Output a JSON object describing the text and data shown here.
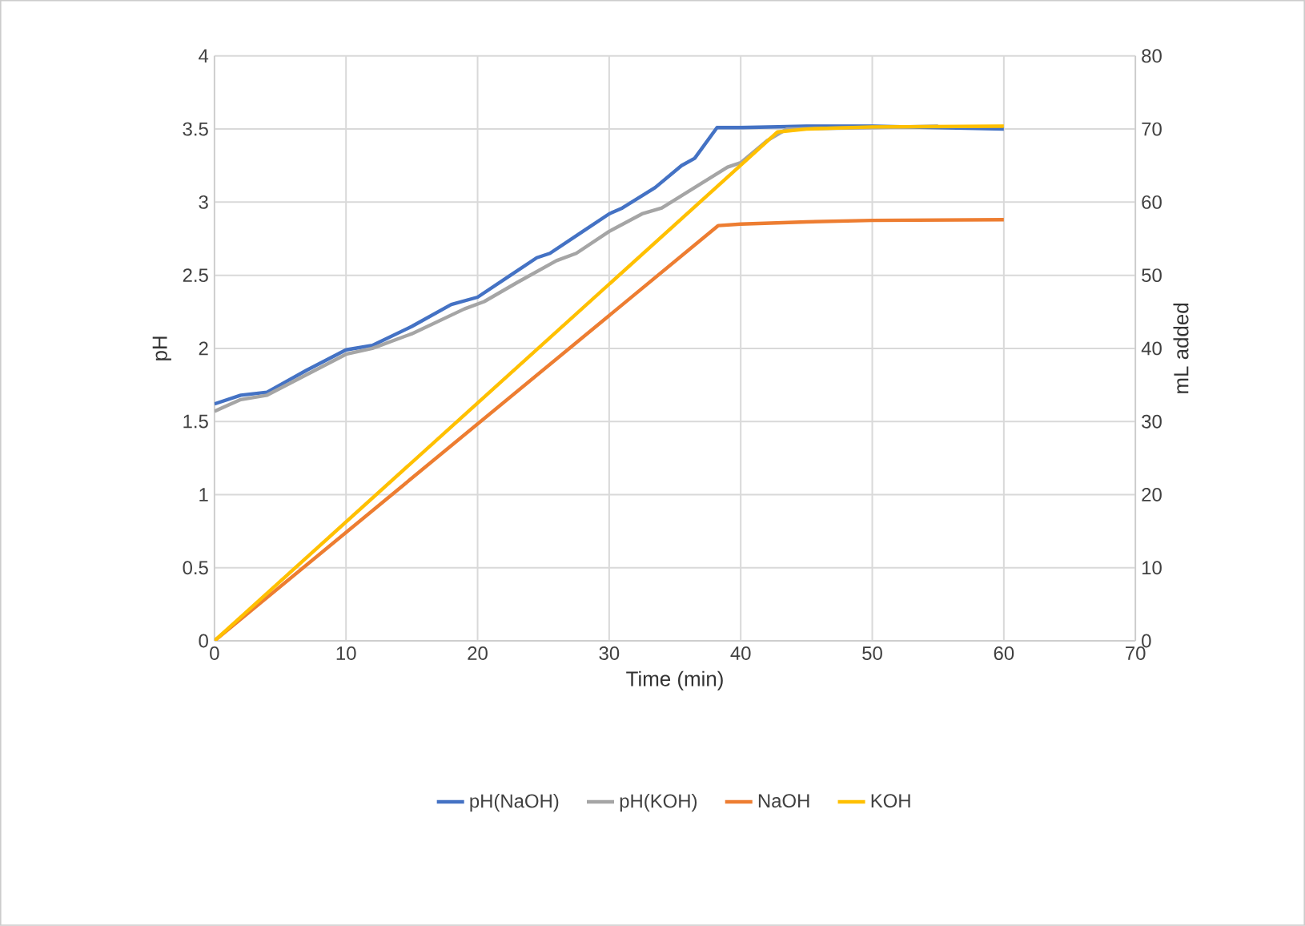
{
  "chart_data": {
    "type": "line",
    "xlabel": "Time (min)",
    "ylabel": "pH",
    "y2label": "mL added",
    "xlim": [
      0,
      70
    ],
    "xticks": [
      0,
      10,
      20,
      30,
      40,
      50,
      60,
      70
    ],
    "ylim": [
      0,
      4
    ],
    "yticks": [
      0,
      0.5,
      1,
      1.5,
      2,
      2.5,
      3,
      3.5,
      4
    ],
    "y2lim": [
      0,
      80
    ],
    "y2ticks": [
      0,
      10,
      20,
      30,
      40,
      50,
      60,
      70,
      80
    ],
    "grid": true,
    "legend": "bottom",
    "marker": "none",
    "line_style": "solid",
    "series": [
      {
        "name": "pH(NaOH)",
        "color": "#4472c4",
        "x": [
          0,
          2,
          4,
          7,
          10,
          12,
          15,
          18,
          20,
          22.5,
          24.5,
          25.5,
          28,
          30,
          31,
          33.5,
          35.5,
          36.5,
          38.2,
          40,
          45,
          50,
          55,
          60
        ],
        "values": [
          1.62,
          1.68,
          1.7,
          1.85,
          1.99,
          2.02,
          2.15,
          2.3,
          2.35,
          2.5,
          2.62,
          2.65,
          2.8,
          2.92,
          2.96,
          3.1,
          3.25,
          3.3,
          3.51,
          3.51,
          3.52,
          3.52,
          3.51,
          3.5
        ]
      },
      {
        "name": "pH(KOH)",
        "color": "#a5a5a5",
        "x": [
          0,
          2,
          4,
          7,
          10,
          12,
          15,
          19,
          20.5,
          23,
          26,
          27.5,
          30,
          32.5,
          34,
          36.5,
          39,
          40,
          42,
          43.5,
          50,
          55
        ],
        "values": [
          1.57,
          1.65,
          1.68,
          1.82,
          1.96,
          2.0,
          2.1,
          2.27,
          2.32,
          2.45,
          2.6,
          2.65,
          2.8,
          2.92,
          2.96,
          3.1,
          3.24,
          3.27,
          3.42,
          3.5,
          3.51,
          3.52
        ]
      },
      {
        "name": "NaOH",
        "color": "#ed7d31",
        "axis": "y2",
        "x": [
          0,
          38.3,
          40,
          45,
          50,
          60
        ],
        "values": [
          0,
          56.8,
          57,
          57.3,
          57.5,
          57.6
        ]
      },
      {
        "name": "KOH",
        "color": "#ffc000",
        "axis": "y2",
        "x": [
          0,
          42.8,
          45,
          50,
          60
        ],
        "values": [
          0,
          69.6,
          70,
          70.3,
          70.4
        ]
      }
    ]
  }
}
